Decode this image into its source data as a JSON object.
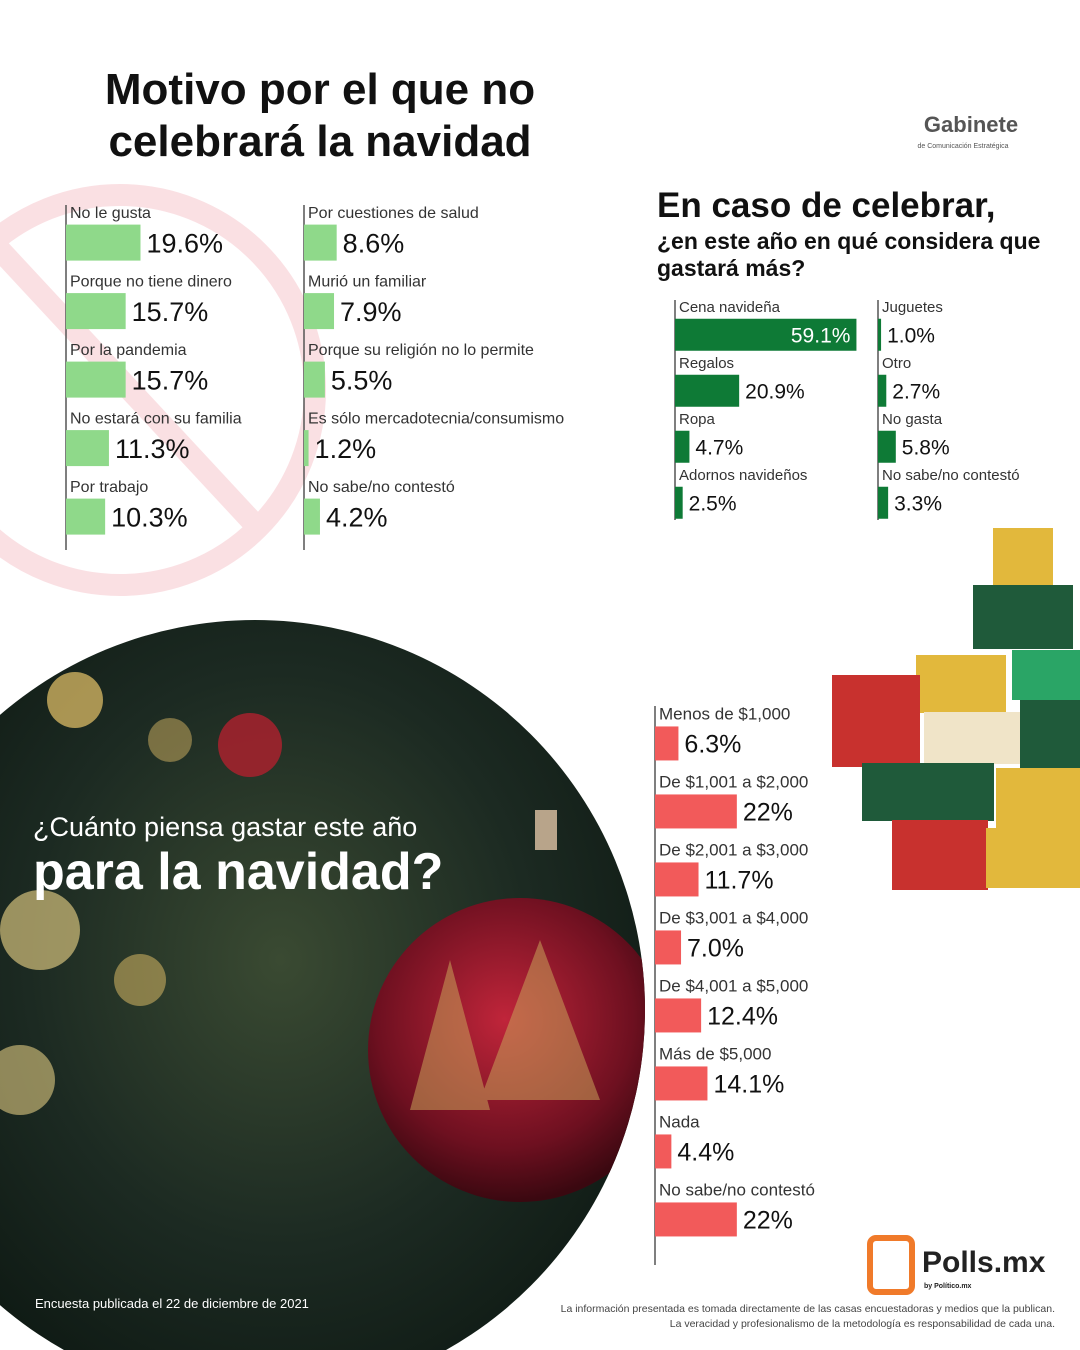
{
  "branding": {
    "gabinete": "Gabinete",
    "gabinete_sub": "de Comunicación Estratégica",
    "polls": "Polls.mx",
    "polls_sub": "by Político.mx"
  },
  "footer": {
    "date": "Encuesta publicada el 22 de diciembre de 2021",
    "disclaimer": [
      "La información presentada es tomada directamente de las casas encuestadoras y medios que la publican.",
      "La veracidad y profesionalismo de la metodología es responsabilidad de cada una."
    ]
  },
  "chart_data": [
    {
      "type": "bar",
      "title": "Motivo por el que no celebrará la navidad",
      "color": "#8fd98a",
      "categories": [
        "No le gusta",
        "Porque no tiene dinero",
        "Por la pandemia",
        "No estará con su familia",
        "Por trabajo",
        "Por cuestiones de salud",
        "Murió un familiar",
        "Porque su religión no lo permite",
        "Es sólo mercadotecnia/consumismo",
        "No sabe/no contestó"
      ],
      "values": [
        19.6,
        15.7,
        15.7,
        11.3,
        10.3,
        8.6,
        7.9,
        5.5,
        1.2,
        4.2
      ],
      "value_labels": [
        "19.6%",
        "15.7%",
        "15.7%",
        "11.3%",
        "10.3%",
        "8.6%",
        "7.9%",
        "5.5%",
        "1.2%",
        "4.2%"
      ]
    },
    {
      "type": "bar",
      "title": "En caso de celebrar,",
      "subtitle": "¿en este año en qué considera que gastará más?",
      "color": "#0e7a36",
      "categories": [
        "Cena navideña",
        "Regalos",
        "Ropa",
        "Adornos navideños",
        "Juguetes",
        "Otro",
        "No gasta",
        "No sabe/no contestó"
      ],
      "values": [
        59.1,
        20.9,
        4.7,
        2.5,
        1.0,
        2.7,
        5.8,
        3.3
      ],
      "value_labels": [
        "59.1%",
        "20.9%",
        "4.7%",
        "2.5%",
        "1.0%",
        "2.7%",
        "5.8%",
        "3.3%"
      ]
    },
    {
      "type": "bar",
      "title": "¿Cuánto piensa gastar este año",
      "subtitle": "para la navidad?",
      "color": "#f25a5a",
      "categories": [
        "Menos de $1,000",
        "De $1,001 a $2,000",
        "De $2,001 a $3,000",
        "De $3,001 a $4,000",
        "De $4,001 a $5,000",
        "Más de $5,000",
        "Nada",
        "No sabe/no contestó"
      ],
      "values": [
        6.3,
        22,
        11.7,
        7.0,
        12.4,
        14.1,
        4.4,
        22
      ],
      "value_labels": [
        "6.3%",
        "22%",
        "11.7%",
        "7.0%",
        "12.4%",
        "14.1%",
        "4.4%",
        "22%"
      ]
    }
  ]
}
